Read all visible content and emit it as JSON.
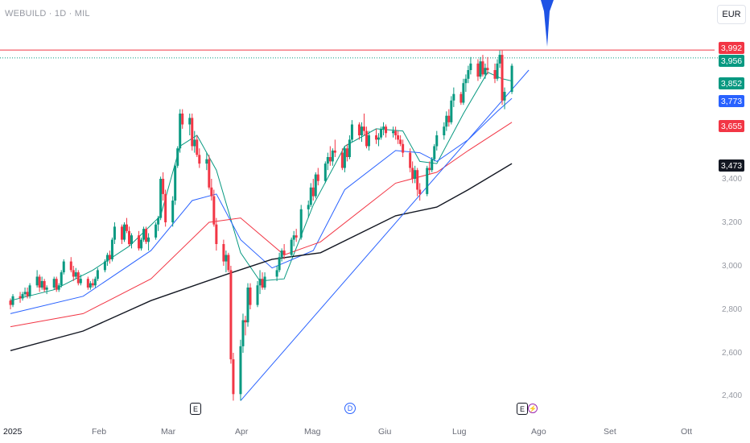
{
  "header": {
    "symbol": "WEBUILD · 1D · MIL",
    "currency": "EUR"
  },
  "colors": {
    "up": "#089981",
    "down": "#f23645",
    "ma_green": "#089981",
    "ma_blue": "#2962ff",
    "ma_red": "#f23645",
    "ma_black": "#131722",
    "trendline": "#2962ff"
  },
  "price_badges": [
    {
      "label": "3,992",
      "value": 3.992,
      "color": "#f23645"
    },
    {
      "label": "3,956",
      "value": 3.956,
      "color": "#089981"
    },
    {
      "label": "3,852",
      "value": 3.852,
      "color": "#089981"
    },
    {
      "label": "3,773",
      "value": 3.773,
      "color": "#2962ff"
    },
    {
      "label": "3,655",
      "value": 3.655,
      "color": "#f23645"
    },
    {
      "label": "3,473",
      "value": 3.473,
      "color": "#131722"
    }
  ],
  "events": [
    {
      "label": "E",
      "kind": "earnings",
      "date": "2025-03-27"
    },
    {
      "label": "D",
      "kind": "dividend",
      "date": "2025-05-21"
    },
    {
      "label": "E",
      "kind": "earnings",
      "date": "2025-07-25"
    },
    {
      "label": "⚡",
      "kind": "split",
      "date": "2025-07-26"
    }
  ],
  "chart_data": {
    "type": "candlestick",
    "x_axis": {
      "ticks": [
        "2025",
        "Feb",
        "Mar",
        "Apr",
        "Mag",
        "Giu",
        "Lug",
        "Ago",
        "Set",
        "Ott"
      ]
    },
    "y_axis": {
      "ticks": [
        "3,400",
        "3,200",
        "3,000",
        "2,800",
        "2,600",
        "2,400"
      ],
      "tick_values": [
        3.4,
        3.2,
        3.0,
        2.8,
        2.6,
        2.4
      ],
      "range": [
        2.33,
        4.24
      ]
    },
    "horizontal_lines": [
      {
        "value": 3.992,
        "color": "#f23645"
      },
      {
        "value": 3.956,
        "color": "#089981",
        "style": "dotted"
      }
    ],
    "trendline": {
      "from": {
        "date": "2025-04-07",
        "value": 2.38
      },
      "to": {
        "date": "2025-08-04",
        "value": 3.9
      }
    },
    "series": [
      {
        "kind": "ma",
        "color": "#089981",
        "points": [
          [
            "2025-01-02",
            2.84
          ],
          [
            "2025-01-20",
            2.89
          ],
          [
            "2025-02-05",
            2.98
          ],
          [
            "2025-02-20",
            3.09
          ],
          [
            "2025-03-05",
            3.23
          ],
          [
            "2025-03-13",
            3.55
          ],
          [
            "2025-03-20",
            3.6
          ],
          [
            "2025-03-28",
            3.44
          ],
          [
            "2025-04-07",
            3.06
          ],
          [
            "2025-04-15",
            2.93
          ],
          [
            "2025-04-25",
            2.94
          ],
          [
            "2025-05-07",
            3.28
          ],
          [
            "2025-05-20",
            3.55
          ],
          [
            "2025-06-02",
            3.63
          ],
          [
            "2025-06-13",
            3.62
          ],
          [
            "2025-06-20",
            3.48
          ],
          [
            "2025-06-27",
            3.47
          ],
          [
            "2025-07-08",
            3.7
          ],
          [
            "2025-07-18",
            3.89
          ],
          [
            "2025-07-24",
            3.86
          ],
          [
            "2025-07-28",
            3.85
          ]
        ]
      },
      {
        "kind": "ma",
        "color": "#2962ff",
        "points": [
          [
            "2025-01-02",
            2.78
          ],
          [
            "2025-02-01",
            2.86
          ],
          [
            "2025-03-01",
            3.07
          ],
          [
            "2025-03-18",
            3.3
          ],
          [
            "2025-03-28",
            3.33
          ],
          [
            "2025-04-07",
            3.12
          ],
          [
            "2025-04-20",
            2.99
          ],
          [
            "2025-05-07",
            3.07
          ],
          [
            "2025-05-20",
            3.35
          ],
          [
            "2025-06-10",
            3.53
          ],
          [
            "2025-06-20",
            3.52
          ],
          [
            "2025-06-27",
            3.48
          ],
          [
            "2025-07-10",
            3.58
          ],
          [
            "2025-07-22",
            3.71
          ],
          [
            "2025-07-28",
            3.77
          ]
        ]
      },
      {
        "kind": "ma",
        "color": "#f23645",
        "points": [
          [
            "2025-01-02",
            2.72
          ],
          [
            "2025-02-01",
            2.78
          ],
          [
            "2025-03-01",
            2.94
          ],
          [
            "2025-03-25",
            3.2
          ],
          [
            "2025-04-07",
            3.22
          ],
          [
            "2025-04-25",
            3.05
          ],
          [
            "2025-05-10",
            3.11
          ],
          [
            "2025-06-10",
            3.38
          ],
          [
            "2025-06-27",
            3.43
          ],
          [
            "2025-07-10",
            3.53
          ],
          [
            "2025-07-28",
            3.66
          ]
        ]
      },
      {
        "kind": "ma",
        "color": "#131722",
        "points": [
          [
            "2025-01-02",
            2.61
          ],
          [
            "2025-02-01",
            2.7
          ],
          [
            "2025-03-01",
            2.84
          ],
          [
            "2025-04-01",
            2.96
          ],
          [
            "2025-04-20",
            3.03
          ],
          [
            "2025-05-10",
            3.06
          ],
          [
            "2025-06-10",
            3.23
          ],
          [
            "2025-06-27",
            3.27
          ],
          [
            "2025-07-10",
            3.35
          ],
          [
            "2025-07-28",
            3.47
          ]
        ]
      }
    ],
    "candles": [
      [
        "2025-01-02",
        2.84,
        2.85,
        2.8,
        2.82
      ],
      [
        "2025-01-03",
        2.82,
        2.87,
        2.81,
        2.86
      ],
      [
        "2025-01-06",
        2.86,
        2.88,
        2.83,
        2.85
      ],
      [
        "2025-01-07",
        2.85,
        2.88,
        2.84,
        2.87
      ],
      [
        "2025-01-08",
        2.87,
        2.9,
        2.86,
        2.88
      ],
      [
        "2025-01-09",
        2.88,
        2.9,
        2.85,
        2.86
      ],
      [
        "2025-01-10",
        2.86,
        2.92,
        2.85,
        2.91
      ],
      [
        "2025-01-13",
        2.91,
        2.98,
        2.9,
        2.95
      ],
      [
        "2025-01-14",
        2.95,
        2.96,
        2.88,
        2.9
      ],
      [
        "2025-01-15",
        2.9,
        2.95,
        2.89,
        2.93
      ],
      [
        "2025-01-16",
        2.93,
        2.94,
        2.88,
        2.89
      ],
      [
        "2025-01-17",
        2.89,
        2.91,
        2.87,
        2.9
      ],
      [
        "2025-01-20",
        2.9,
        2.95,
        2.89,
        2.94
      ],
      [
        "2025-01-21",
        2.94,
        2.95,
        2.88,
        2.89
      ],
      [
        "2025-01-22",
        2.89,
        2.92,
        2.88,
        2.91
      ],
      [
        "2025-01-23",
        2.91,
        2.98,
        2.9,
        2.97
      ],
      [
        "2025-01-24",
        2.97,
        3.03,
        2.96,
        3.02
      ],
      [
        "2025-01-27",
        3.02,
        3.04,
        2.97,
        2.98
      ],
      [
        "2025-01-28",
        2.98,
        3.0,
        2.93,
        2.95
      ],
      [
        "2025-01-29",
        2.95,
        2.99,
        2.94,
        2.97
      ],
      [
        "2025-01-30",
        2.97,
        2.98,
        2.91,
        2.92
      ],
      [
        "2025-01-31",
        2.92,
        2.96,
        2.91,
        2.94
      ],
      [
        "2025-02-03",
        2.94,
        2.95,
        2.89,
        2.9
      ],
      [
        "2025-02-04",
        2.9,
        2.93,
        2.89,
        2.92
      ],
      [
        "2025-02-05",
        2.92,
        2.94,
        2.9,
        2.91
      ],
      [
        "2025-02-06",
        2.91,
        2.95,
        2.9,
        2.94
      ],
      [
        "2025-02-07",
        2.94,
        2.99,
        2.93,
        2.98
      ],
      [
        "2025-02-10",
        2.98,
        3.03,
        2.97,
        3.02
      ],
      [
        "2025-02-11",
        3.02,
        3.06,
        3.0,
        3.05
      ],
      [
        "2025-02-12",
        3.05,
        3.07,
        3.01,
        3.03
      ],
      [
        "2025-02-13",
        3.03,
        3.13,
        3.02,
        3.12
      ],
      [
        "2025-02-14",
        3.12,
        3.2,
        3.1,
        3.18
      ],
      [
        "2025-02-17",
        3.18,
        3.19,
        3.1,
        3.12
      ],
      [
        "2025-02-18",
        3.12,
        3.2,
        3.11,
        3.19
      ],
      [
        "2025-02-19",
        3.19,
        3.22,
        3.15,
        3.16
      ],
      [
        "2025-02-20",
        3.16,
        3.18,
        3.09,
        3.1
      ],
      [
        "2025-02-21",
        3.1,
        3.15,
        3.08,
        3.14
      ],
      [
        "2025-02-24",
        3.14,
        3.16,
        3.07,
        3.08
      ],
      [
        "2025-02-25",
        3.08,
        3.13,
        3.07,
        3.12
      ],
      [
        "2025-02-26",
        3.12,
        3.18,
        3.11,
        3.17
      ],
      [
        "2025-02-27",
        3.17,
        3.18,
        3.1,
        3.11
      ],
      [
        "2025-02-28",
        3.11,
        3.15,
        3.07,
        3.13
      ],
      [
        "2025-03-03",
        3.13,
        3.2,
        3.12,
        3.19
      ],
      [
        "2025-03-04",
        3.19,
        3.23,
        3.16,
        3.22
      ],
      [
        "2025-03-05",
        3.22,
        3.41,
        3.21,
        3.4
      ],
      [
        "2025-03-06",
        3.4,
        3.43,
        3.3,
        3.33
      ],
      [
        "2025-03-07",
        3.33,
        3.35,
        3.18,
        3.2
      ],
      [
        "2025-03-10",
        3.2,
        3.32,
        3.18,
        3.3
      ],
      [
        "2025-03-11",
        3.3,
        3.47,
        3.28,
        3.46
      ],
      [
        "2025-03-12",
        3.46,
        3.55,
        3.45,
        3.54
      ],
      [
        "2025-03-13",
        3.54,
        3.72,
        3.52,
        3.7
      ],
      [
        "2025-03-14",
        3.7,
        3.72,
        3.63,
        3.65
      ],
      [
        "2025-03-17",
        3.65,
        3.7,
        3.6,
        3.68
      ],
      [
        "2025-03-18",
        3.68,
        3.7,
        3.53,
        3.55
      ],
      [
        "2025-03-19",
        3.55,
        3.62,
        3.52,
        3.58
      ],
      [
        "2025-03-20",
        3.58,
        3.6,
        3.5,
        3.51
      ],
      [
        "2025-03-21",
        3.51,
        3.54,
        3.45,
        3.47
      ],
      [
        "2025-03-24",
        3.47,
        3.52,
        3.44,
        3.49
      ],
      [
        "2025-03-25",
        3.49,
        3.51,
        3.35,
        3.36
      ],
      [
        "2025-03-26",
        3.36,
        3.4,
        3.3,
        3.32
      ],
      [
        "2025-03-27",
        3.32,
        3.35,
        3.18,
        3.19
      ],
      [
        "2025-03-28",
        3.19,
        3.22,
        3.07,
        3.1
      ],
      [
        "2025-03-31",
        3.1,
        3.12,
        3.0,
        3.02
      ],
      [
        "2025-04-01",
        3.02,
        3.07,
        2.97,
        3.05
      ],
      [
        "2025-04-02",
        3.05,
        3.06,
        2.97,
        2.98
      ],
      [
        "2025-04-03",
        2.98,
        3.0,
        2.55,
        2.57
      ],
      [
        "2025-04-04",
        2.57,
        2.6,
        2.38,
        2.41
      ],
      [
        "2025-04-07",
        2.41,
        2.66,
        2.38,
        2.63
      ],
      [
        "2025-04-08",
        2.63,
        2.78,
        2.6,
        2.75
      ],
      [
        "2025-04-09",
        2.75,
        2.77,
        2.68,
        2.74
      ],
      [
        "2025-04-10",
        2.74,
        2.92,
        2.72,
        2.9
      ],
      [
        "2025-04-11",
        2.9,
        2.92,
        2.8,
        2.82
      ],
      [
        "2025-04-14",
        2.82,
        2.93,
        2.81,
        2.91
      ],
      [
        "2025-04-15",
        2.91,
        2.98,
        2.87,
        2.94
      ],
      [
        "2025-04-16",
        2.94,
        2.97,
        2.89,
        2.9
      ],
      [
        "2025-04-17",
        2.9,
        2.97,
        2.89,
        2.95
      ],
      [
        "2025-04-22",
        2.95,
        3.0,
        2.93,
        2.98
      ],
      [
        "2025-04-23",
        2.98,
        3.06,
        2.97,
        3.04
      ],
      [
        "2025-04-24",
        3.04,
        3.08,
        3.02,
        3.07
      ],
      [
        "2025-04-25",
        3.07,
        3.1,
        3.03,
        3.05
      ],
      [
        "2025-04-28",
        3.05,
        3.13,
        3.04,
        3.12
      ],
      [
        "2025-04-29",
        3.12,
        3.16,
        3.09,
        3.14
      ],
      [
        "2025-04-30",
        3.14,
        3.17,
        3.11,
        3.13
      ],
      [
        "2025-05-02",
        3.13,
        3.28,
        3.12,
        3.26
      ],
      [
        "2025-05-05",
        3.26,
        3.3,
        3.22,
        3.28
      ],
      [
        "2025-05-06",
        3.28,
        3.38,
        3.27,
        3.36
      ],
      [
        "2025-05-07",
        3.36,
        3.4,
        3.3,
        3.32
      ],
      [
        "2025-05-08",
        3.32,
        3.43,
        3.31,
        3.42
      ],
      [
        "2025-05-09",
        3.42,
        3.45,
        3.37,
        3.39
      ],
      [
        "2025-05-12",
        3.39,
        3.48,
        3.38,
        3.47
      ],
      [
        "2025-05-13",
        3.47,
        3.52,
        3.44,
        3.5
      ],
      [
        "2025-05-14",
        3.5,
        3.55,
        3.46,
        3.48
      ],
      [
        "2025-05-15",
        3.48,
        3.54,
        3.46,
        3.53
      ],
      [
        "2025-05-16",
        3.53,
        3.58,
        3.5,
        3.52
      ],
      [
        "2025-05-19",
        3.52,
        3.54,
        3.44,
        3.45
      ],
      [
        "2025-05-20",
        3.45,
        3.55,
        3.43,
        3.54
      ],
      [
        "2025-05-21",
        3.54,
        3.56,
        3.48,
        3.5
      ],
      [
        "2025-05-22",
        3.5,
        3.6,
        3.49,
        3.58
      ],
      [
        "2025-05-23",
        3.58,
        3.67,
        3.57,
        3.65
      ],
      [
        "2025-05-26",
        3.65,
        3.66,
        3.58,
        3.6
      ],
      [
        "2025-05-27",
        3.6,
        3.66,
        3.57,
        3.64
      ],
      [
        "2025-05-28",
        3.64,
        3.7,
        3.6,
        3.62
      ],
      [
        "2025-05-29",
        3.62,
        3.64,
        3.54,
        3.55
      ],
      [
        "2025-05-30",
        3.55,
        3.62,
        3.53,
        3.6
      ],
      [
        "2025-06-02",
        3.6,
        3.63,
        3.56,
        3.58
      ],
      [
        "2025-06-03",
        3.58,
        3.61,
        3.55,
        3.59
      ],
      [
        "2025-06-04",
        3.59,
        3.64,
        3.58,
        3.63
      ],
      [
        "2025-06-05",
        3.63,
        3.66,
        3.6,
        3.64
      ],
      [
        "2025-06-06",
        3.64,
        3.65,
        3.59,
        3.61
      ],
      [
        "2025-06-09",
        3.61,
        3.64,
        3.59,
        3.62
      ],
      [
        "2025-06-10",
        3.62,
        3.64,
        3.58,
        3.6
      ],
      [
        "2025-06-11",
        3.6,
        3.62,
        3.56,
        3.58
      ],
      [
        "2025-06-12",
        3.58,
        3.6,
        3.55,
        3.56
      ],
      [
        "2025-06-13",
        3.56,
        3.58,
        3.5,
        3.52
      ],
      [
        "2025-06-16",
        3.52,
        3.54,
        3.43,
        3.45
      ],
      [
        "2025-06-17",
        3.45,
        3.48,
        3.38,
        3.4
      ],
      [
        "2025-06-18",
        3.4,
        3.46,
        3.38,
        3.44
      ],
      [
        "2025-06-19",
        3.44,
        3.45,
        3.32,
        3.35
      ],
      [
        "2025-06-20",
        3.35,
        3.38,
        3.3,
        3.33
      ],
      [
        "2025-06-23",
        3.33,
        3.46,
        3.32,
        3.45
      ],
      [
        "2025-06-24",
        3.45,
        3.48,
        3.42,
        3.44
      ],
      [
        "2025-06-25",
        3.44,
        3.5,
        3.43,
        3.49
      ],
      [
        "2025-06-26",
        3.49,
        3.56,
        3.48,
        3.55
      ],
      [
        "2025-06-27",
        3.55,
        3.62,
        3.53,
        3.6
      ],
      [
        "2025-06-30",
        3.6,
        3.66,
        3.58,
        3.64
      ],
      [
        "2025-07-01",
        3.64,
        3.71,
        3.62,
        3.69
      ],
      [
        "2025-07-02",
        3.69,
        3.72,
        3.64,
        3.66
      ],
      [
        "2025-07-03",
        3.66,
        3.78,
        3.65,
        3.76
      ],
      [
        "2025-07-04",
        3.76,
        3.82,
        3.73,
        3.79
      ],
      [
        "2025-07-07",
        3.79,
        3.8,
        3.74,
        3.75
      ],
      [
        "2025-07-08",
        3.75,
        3.86,
        3.74,
        3.84
      ],
      [
        "2025-07-09",
        3.84,
        3.88,
        3.8,
        3.86
      ],
      [
        "2025-07-10",
        3.86,
        3.92,
        3.84,
        3.9
      ],
      [
        "2025-07-11",
        3.9,
        3.96,
        3.88,
        3.93
      ],
      [
        "2025-07-14",
        3.93,
        3.95,
        3.85,
        3.87
      ],
      [
        "2025-07-15",
        3.87,
        3.96,
        3.86,
        3.94
      ],
      [
        "2025-07-16",
        3.94,
        3.97,
        3.87,
        3.88
      ],
      [
        "2025-07-17",
        3.88,
        3.93,
        3.86,
        3.91
      ],
      [
        "2025-07-18",
        3.91,
        3.96,
        3.88,
        3.9
      ],
      [
        "2025-07-21",
        3.9,
        3.93,
        3.84,
        3.86
      ],
      [
        "2025-07-22",
        3.86,
        3.95,
        3.85,
        3.93
      ],
      [
        "2025-07-23",
        3.93,
        3.99,
        3.91,
        3.97
      ],
      [
        "2025-07-24",
        3.97,
        3.99,
        3.74,
        3.76
      ],
      [
        "2025-07-25",
        3.76,
        3.82,
        3.72,
        3.8
      ],
      [
        "2025-07-28",
        3.8,
        3.93,
        3.79,
        3.92
      ]
    ]
  }
}
